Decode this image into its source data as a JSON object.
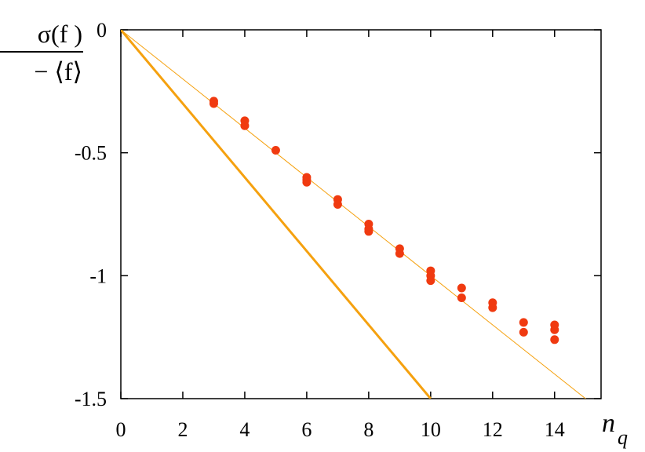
{
  "chart_data": {
    "type": "scatter",
    "title": "",
    "xlabel": "n",
    "xlabel_sub": "q",
    "ylabel_numerator": "σ(f )",
    "ylabel_denominator": "− ⟨f⟩",
    "xlim": [
      0,
      15.5
    ],
    "ylim": [
      -1.5,
      0
    ],
    "xticks": [
      0,
      2,
      4,
      6,
      8,
      10,
      12,
      14
    ],
    "xtick_labels": [
      "0",
      "2",
      "4",
      "6",
      "8",
      "10",
      "12",
      "14"
    ],
    "yticks": [
      0,
      -0.5,
      -1,
      -1.5
    ],
    "ytick_labels": [
      "0",
      "-0.5",
      "-1",
      "-1.5"
    ],
    "grid": false,
    "colors": {
      "points": "#f03a10",
      "line": "#f5a10f"
    },
    "series": [
      {
        "type": "scatter",
        "x": [
          3,
          3,
          4,
          4,
          5,
          6,
          6,
          6,
          7,
          7,
          8,
          8,
          8,
          9,
          9,
          10,
          10,
          10,
          11,
          11,
          12,
          12,
          13,
          13,
          14,
          14,
          14
        ],
        "y": [
          -0.29,
          -0.3,
          -0.37,
          -0.39,
          -0.49,
          -0.6,
          -0.61,
          -0.62,
          -0.69,
          -0.71,
          -0.79,
          -0.81,
          -0.82,
          -0.89,
          -0.91,
          -0.98,
          -1.0,
          -1.02,
          -1.05,
          -1.09,
          -1.11,
          -1.13,
          -1.19,
          -1.23,
          -1.2,
          -1.22,
          -1.26
        ]
      },
      {
        "type": "line",
        "x": [
          0,
          15.5
        ],
        "y": [
          0,
          -1.55
        ]
      },
      {
        "type": "line",
        "x": [
          0,
          10
        ],
        "y": [
          0,
          -1.5
        ]
      }
    ]
  }
}
